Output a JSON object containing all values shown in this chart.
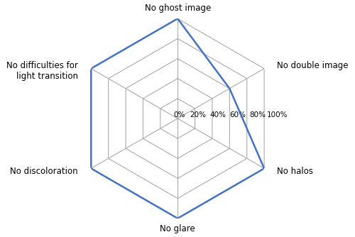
{
  "categories": [
    "No ghost image",
    "No double image",
    "No halos",
    "No glare",
    "No discoloration",
    "No difficulties for\nlight transition"
  ],
  "values": [
    1.0,
    0.6,
    1.0,
    1.0,
    1.0,
    1.0
  ],
  "r_ticks": [
    0.0,
    0.2,
    0.4,
    0.6,
    0.8,
    1.0
  ],
  "r_tick_labels": [
    "0%",
    "20%",
    "40%",
    "60%",
    "80%",
    "100%"
  ],
  "line_color": "#4472C4",
  "line_width": 1.8,
  "grid_color": "#aaaaaa",
  "background_color": "#ffffff",
  "figsize": [
    5.0,
    3.34
  ],
  "dpi": 100,
  "label_fontsize": 8.5,
  "tick_fontsize": 7.5
}
